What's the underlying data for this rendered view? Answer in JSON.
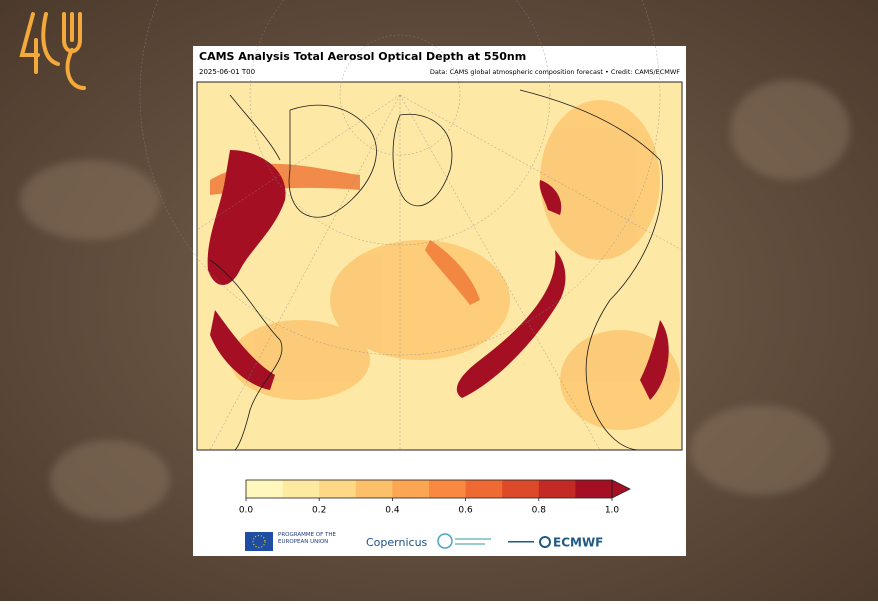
{
  "header": {
    "title": "CAMS Analysis Total Aerosol Optical Depth at 550nm",
    "date": "2025-06-01 T00",
    "credit": "Data: CAMS global atmospheric composition forecast • Credit: CAMS/ECMWF"
  },
  "colorbar": {
    "lim": [
      0,
      1.0
    ],
    "ticks": [
      {
        "value": 0,
        "label": "0.0"
      },
      0.2,
      0.4,
      0.6,
      0.8,
      {
        "value": 1,
        "label": "1.0"
      }
    ],
    "colors": [
      "#fff7bc",
      "#fee9a0",
      "#fed884",
      "#fdc06a",
      "#fca552",
      "#f98840",
      "#ef6a32",
      "#dd4a2a",
      "#c42a25",
      "#a50f24"
    ]
  },
  "logos": {
    "eu": "PROGRAMME OF THE EUROPEAN UNION",
    "copernicus": "Copernicus",
    "ecmwf": "ECMWF"
  }
}
